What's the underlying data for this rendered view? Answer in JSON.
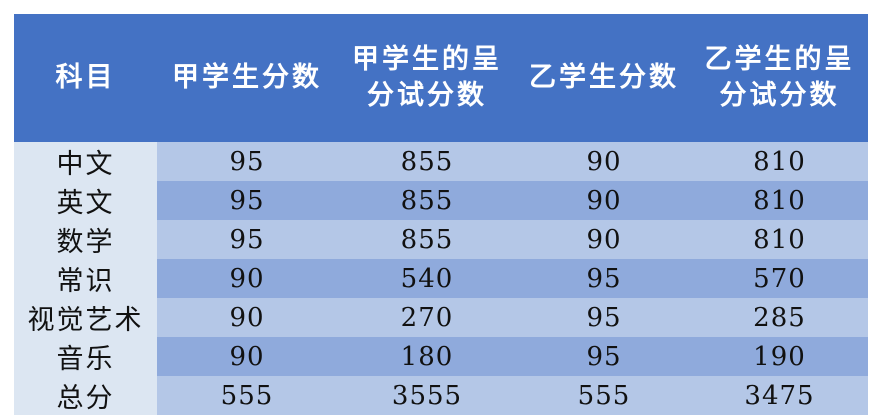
{
  "table": {
    "headers": {
      "subject": "科目",
      "student_a_score": "甲学生分数",
      "student_a_presented_line1": "甲学生的呈",
      "student_a_presented_line2": "分试分数",
      "student_b_score": "乙学生分数",
      "student_b_presented_line1": "乙学生的呈",
      "student_b_presented_line2": "分试分数"
    },
    "rows": [
      {
        "subject": "中文",
        "a": "95",
        "a_presented": "855",
        "b": "90",
        "b_presented": "810"
      },
      {
        "subject": "英文",
        "a": "95",
        "a_presented": "855",
        "b": "90",
        "b_presented": "810"
      },
      {
        "subject": "数学",
        "a": "95",
        "a_presented": "855",
        "b": "90",
        "b_presented": "810"
      },
      {
        "subject": "常识",
        "a": "90",
        "a_presented": "540",
        "b": "95",
        "b_presented": "570"
      },
      {
        "subject": "视觉艺术",
        "a": "90",
        "a_presented": "270",
        "b": "95",
        "b_presented": "285"
      },
      {
        "subject": "音乐",
        "a": "90",
        "a_presented": "180",
        "b": "95",
        "b_presented": "190"
      },
      {
        "subject": "总分",
        "a": "555",
        "a_presented": "3555",
        "b": "555",
        "b_presented": "3475"
      }
    ]
  },
  "colors": {
    "header_background": "#4472c4",
    "header_text": "#ffffff",
    "subject_column": "#dce6f2",
    "row_light": "#b4c7e7",
    "row_dark": "#8faadc"
  }
}
